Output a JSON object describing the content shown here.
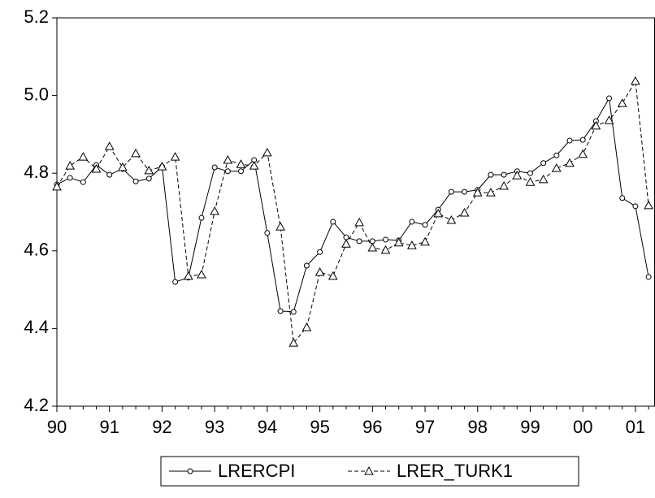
{
  "chart_data": {
    "type": "line",
    "categories": [
      "90",
      null,
      null,
      null,
      "91",
      null,
      null,
      null,
      "92",
      null,
      null,
      null,
      "93",
      null,
      null,
      null,
      "94",
      null,
      null,
      null,
      "95",
      null,
      null,
      null,
      "96",
      null,
      null,
      null,
      "97",
      null,
      null,
      null,
      "98",
      null,
      null,
      null,
      "99",
      null,
      null,
      null,
      "00",
      null,
      null,
      null,
      "01",
      null
    ],
    "series": [
      {
        "name": "LRERCPI",
        "color": "#000000",
        "marker": "circle",
        "line_style": "solid",
        "values": [
          4.771,
          4.788,
          4.777,
          4.821,
          4.796,
          4.811,
          4.779,
          4.786,
          4.817,
          4.52,
          4.531,
          4.685,
          4.815,
          4.805,
          4.805,
          4.834,
          4.646,
          4.445,
          4.443,
          4.562,
          4.597,
          4.675,
          4.635,
          4.625,
          4.625,
          4.629,
          4.627,
          4.675,
          4.667,
          4.706,
          4.752,
          4.752,
          4.757,
          4.796,
          4.796,
          4.805,
          4.8,
          4.826,
          4.846,
          4.884,
          4.886,
          4.934,
          4.993,
          4.736,
          4.715,
          4.533
        ]
      },
      {
        "name": "LRER_TURK1",
        "color": "#000000",
        "marker": "triangle",
        "line_style": "dashed",
        "values": [
          4.765,
          4.819,
          4.842,
          4.811,
          4.869,
          4.815,
          4.851,
          4.807,
          4.817,
          4.842,
          4.535,
          4.539,
          4.702,
          4.834,
          4.823,
          4.819,
          4.853,
          4.662,
          4.363,
          4.403,
          4.545,
          4.535,
          4.618,
          4.673,
          4.608,
          4.602,
          4.621,
          4.614,
          4.623,
          4.696,
          4.679,
          4.698,
          4.75,
          4.75,
          4.767,
          4.794,
          4.777,
          4.784,
          4.813,
          4.826,
          4.849,
          4.922,
          4.936,
          4.98,
          5.037,
          4.717
        ]
      }
    ],
    "ylim": [
      4.2,
      5.2
    ],
    "yticks": [
      4.2,
      4.4,
      4.6,
      4.8,
      {
        "value": 5,
        "label": "5.0"
      },
      5.2
    ],
    "legend": "bottom"
  }
}
